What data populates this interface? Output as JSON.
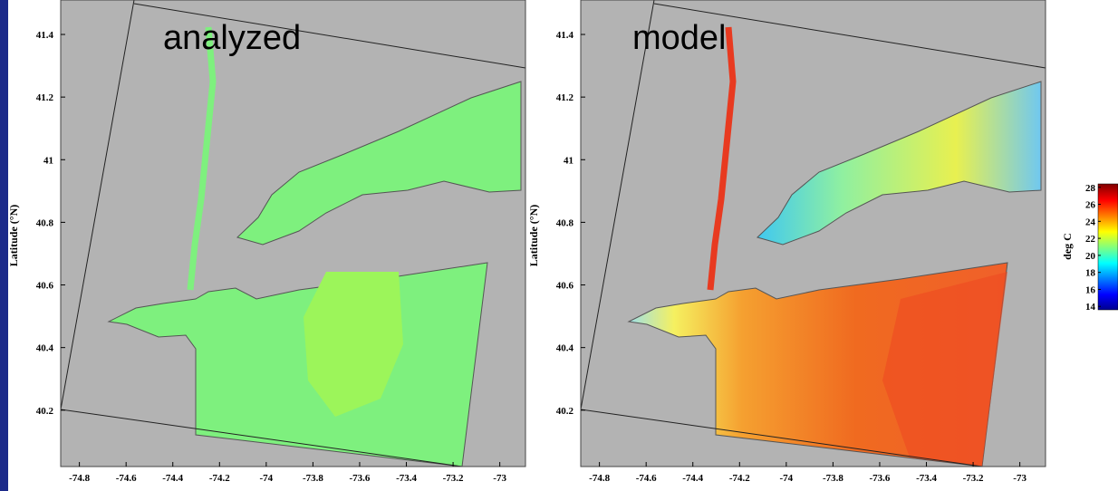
{
  "chart_data": [
    {
      "type": "map",
      "annotation": "analyzed",
      "ylabel": "Latitude (°N)",
      "xlim": [
        -74.88,
        -72.89
      ],
      "ylim": [
        40.02,
        41.51
      ],
      "xticks": [
        -74.8,
        -74.6,
        -74.4,
        -74.2,
        -74,
        -73.8,
        -73.6,
        -73.4,
        -73.2,
        -73
      ],
      "yticks": [
        40.2,
        40.4,
        40.6,
        40.8,
        41,
        41.2,
        41.4
      ]
    },
    {
      "type": "map",
      "annotation": "model",
      "ylabel": "Latitude (°N)",
      "xlim": [
        -74.88,
        -72.89
      ],
      "ylim": [
        40.02,
        41.51
      ],
      "xticks": [
        -74.8,
        -74.6,
        -74.4,
        -74.2,
        -74,
        -73.8,
        -73.6,
        -73.4,
        -73.2,
        -73
      ],
      "yticks": [
        40.2,
        40.4,
        40.6,
        40.8,
        41,
        41.2,
        41.4
      ]
    }
  ],
  "colorbar": {
    "label": "deg C",
    "lim": [
      13.6,
      28.4
    ],
    "ticks": [
      14,
      16,
      18,
      20,
      22,
      24,
      26,
      28
    ]
  }
}
